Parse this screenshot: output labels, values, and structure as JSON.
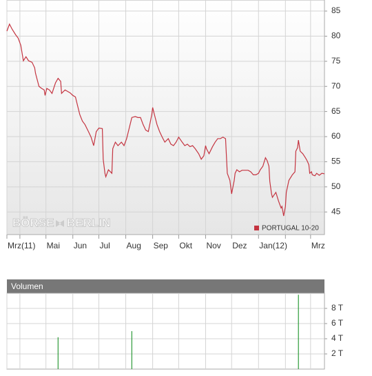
{
  "chart_data": [
    {
      "type": "line",
      "x": [
        16,
        19,
        22,
        26,
        29,
        32,
        35,
        38,
        41,
        45,
        48,
        49,
        53,
        56,
        59,
        60,
        62,
        65,
        68,
        72,
        75,
        78,
        79,
        83,
        86,
        89,
        92,
        95,
        97,
        100,
        103,
        106,
        110,
        113,
        116,
        119,
        122,
        126,
        127,
        129,
        130,
        133,
        137,
        138,
        141,
        144,
        148,
        151,
        154,
        157,
        160,
        164,
        167,
        170,
        173,
        176,
        179,
        183,
        184,
        186,
        189,
        192,
        195,
        198,
        202,
        205,
        208,
        211,
        214,
        218,
        221,
        224,
        227,
        230,
        233,
        237,
        240,
        243,
        245,
        246,
        249,
        253,
        256,
        259,
        262,
        265,
        268,
        270,
        273,
        275,
        278,
        279,
        281,
        284,
        287,
        291,
        294,
        297,
        300,
        303,
        306,
        308,
        311,
        314,
        316,
        318,
        319,
        321,
        322,
        326,
        329,
        332,
        333,
        335,
        337,
        338,
        340,
        341,
        345,
        348,
        349,
        351,
        352,
        354,
        357,
        360,
        362,
        364,
        365,
        367,
        368,
        371,
        373,
        376,
        379,
        382
      ],
      "series": [
        {
          "name": "PORTUGAL 10-20",
          "color": "#c43440",
          "values": [
            81.0,
            82.4,
            81.4,
            80.3,
            79.6,
            78.2,
            75.1,
            75.9,
            75.1,
            74.8,
            73.7,
            72.6,
            70.0,
            69.6,
            69.3,
            68.2,
            69.6,
            69.3,
            68.6,
            70.7,
            71.6,
            71.0,
            68.6,
            69.3,
            69.0,
            68.7,
            68.2,
            67.9,
            66.5,
            64.4,
            63.1,
            62.4,
            61.0,
            59.9,
            58.2,
            61.0,
            61.7,
            61.6,
            55.5,
            52.7,
            52.0,
            53.4,
            52.7,
            57.6,
            58.9,
            58.2,
            58.9,
            58.2,
            59.6,
            61.7,
            63.8,
            64.0,
            63.8,
            63.8,
            62.4,
            61.3,
            61.0,
            64.4,
            65.8,
            64.4,
            62.4,
            61.0,
            59.9,
            58.9,
            59.6,
            58.5,
            58.2,
            58.9,
            59.9,
            58.9,
            58.2,
            58.5,
            58.0,
            58.2,
            57.6,
            56.6,
            55.5,
            56.2,
            58.2,
            57.6,
            56.6,
            58.0,
            58.9,
            59.6,
            59.6,
            59.9,
            59.6,
            52.7,
            51.3,
            48.6,
            51.3,
            52.7,
            53.4,
            53.0,
            53.3,
            53.3,
            53.3,
            53.0,
            52.4,
            52.4,
            52.7,
            53.4,
            54.1,
            55.8,
            55.2,
            54.1,
            51.1,
            48.6,
            47.9,
            48.9,
            47.2,
            45.8,
            46.1,
            44.2,
            46.1,
            48.9,
            50.5,
            51.3,
            52.4,
            53.0,
            57.1,
            57.8,
            59.3,
            57.1,
            56.6,
            55.8,
            55.2,
            54.4,
            52.7,
            53.0,
            52.4,
            52.2,
            52.7,
            52.3,
            52.7,
            52.6
          ]
        }
      ],
      "xlim": [
        16,
        382
      ],
      "xticks": [
        {
          "value": 16,
          "label": "Mrz(11)"
        },
        {
          "value": 31,
          "label": null
        },
        {
          "value": 61,
          "label": "Mai"
        },
        {
          "value": 92,
          "label": "Jun"
        },
        {
          "value": 122,
          "label": "Jul"
        },
        {
          "value": 153,
          "label": "Aug"
        },
        {
          "value": 184,
          "label": "Sep"
        },
        {
          "value": 214,
          "label": "Okt"
        },
        {
          "value": 245,
          "label": "Nov"
        },
        {
          "value": 275,
          "label": "Dez"
        },
        {
          "value": 306,
          "label": "Jan(12)"
        },
        {
          "value": 337,
          "label": null
        },
        {
          "value": 366,
          "label": "Mrz"
        }
      ],
      "ylim": [
        40.5,
        87.2
      ],
      "yticks": [
        45,
        50,
        55,
        60,
        65,
        70,
        75,
        80,
        85
      ],
      "grid": true,
      "legend": "lower-right",
      "watermark": [
        "BÖRSE",
        "BERLIN"
      ]
    },
    {
      "type": "bar",
      "title": "Volumen",
      "x": [
        75,
        160,
        352
      ],
      "values": [
        4.2,
        5.0,
        9.8
      ],
      "color": "#2e9b3a",
      "xlim": [
        16,
        382
      ],
      "ylim": [
        0,
        10
      ],
      "yticks": [
        {
          "value": 2,
          "label": "2 T"
        },
        {
          "value": 4,
          "label": "4 T"
        },
        {
          "value": 6,
          "label": "6 T"
        },
        {
          "value": 8,
          "label": "8 T"
        }
      ],
      "grid": true
    }
  ]
}
